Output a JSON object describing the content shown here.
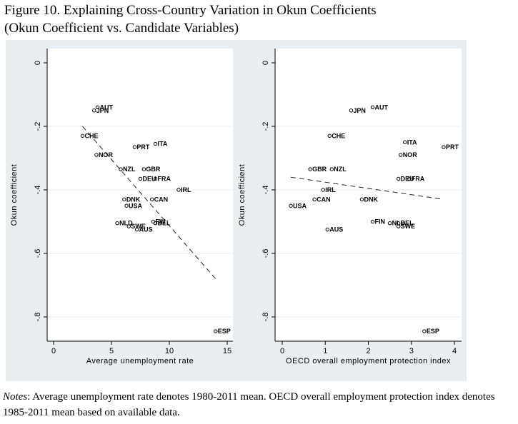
{
  "figure": {
    "title_line1": "Figure 10. Explaining Cross-Country Variation in Okun Coefficients",
    "title_line2": "(Okun Coefficient vs. Candidate Variables)"
  },
  "notes": {
    "label": "Notes",
    "text": ": Average unemployment rate denotes 1980-2011 mean. OECD overall employment protection index denotes 1985-2011 mean based on available data."
  },
  "chart_data": [
    {
      "type": "scatter",
      "xlabel": "Average unemployment rate",
      "ylabel": "Okun coefficient",
      "xlim": [
        0,
        15
      ],
      "ylim": [
        -0.85,
        0
      ],
      "xticks": [
        0,
        5,
        10,
        15
      ],
      "yticks": [
        0,
        -0.2,
        -0.4,
        -0.6,
        -0.8
      ],
      "xtick_labels": [
        "0",
        "5",
        "10",
        "15"
      ],
      "ytick_labels": [
        "0",
        "-.2",
        "-.4",
        "-.6",
        "-.8"
      ],
      "grid": true,
      "fit_line": {
        "x": [
          2.5,
          14.0
        ],
        "y": [
          -0.2,
          -0.68
        ]
      },
      "points": [
        {
          "label": "AUT",
          "x": 3.8,
          "y": -0.14
        },
        {
          "label": "JPN",
          "x": 3.5,
          "y": -0.15
        },
        {
          "label": "CHE",
          "x": 2.5,
          "y": -0.23
        },
        {
          "label": "NOR",
          "x": 3.7,
          "y": -0.29
        },
        {
          "label": "PRT",
          "x": 7.0,
          "y": -0.265
        },
        {
          "label": "ITA",
          "x": 8.8,
          "y": -0.255
        },
        {
          "label": "NZL",
          "x": 5.8,
          "y": -0.335
        },
        {
          "label": "GBR",
          "x": 7.8,
          "y": -0.335
        },
        {
          "label": "DEU",
          "x": 7.5,
          "y": -0.365
        },
        {
          "label": "FRA",
          "x": 8.8,
          "y": -0.365
        },
        {
          "label": "IRL",
          "x": 10.8,
          "y": -0.4
        },
        {
          "label": "DNK",
          "x": 6.1,
          "y": -0.43
        },
        {
          "label": "CAN",
          "x": 8.5,
          "y": -0.43
        },
        {
          "label": "USA",
          "x": 6.3,
          "y": -0.45
        },
        {
          "label": "NLD",
          "x": 5.5,
          "y": -0.505
        },
        {
          "label": "FIN",
          "x": 8.6,
          "y": -0.5
        },
        {
          "label": "BEL",
          "x": 8.8,
          "y": -0.505
        },
        {
          "label": "SWE",
          "x": 6.5,
          "y": -0.515
        },
        {
          "label": "AUS",
          "x": 7.2,
          "y": -0.525
        },
        {
          "label": "ESP",
          "x": 14.0,
          "y": -0.845
        }
      ]
    },
    {
      "type": "scatter",
      "xlabel": "OECD overall employment protection index",
      "ylabel": "Okun coefficient",
      "xlim": [
        0,
        4
      ],
      "ylim": [
        -0.85,
        0
      ],
      "xticks": [
        0,
        1,
        2,
        3,
        4
      ],
      "yticks": [
        0,
        -0.2,
        -0.4,
        -0.6,
        -0.8
      ],
      "xtick_labels": [
        "0",
        "1",
        "2",
        "3",
        "4"
      ],
      "ytick_labels": [
        "0",
        "-.2",
        "-.4",
        "-.6",
        "-.8"
      ],
      "grid": true,
      "fit_line": {
        "x": [
          0.2,
          3.75
        ],
        "y": [
          -0.36,
          -0.43
        ]
      },
      "points": [
        {
          "label": "AUT",
          "x": 2.1,
          "y": -0.14
        },
        {
          "label": "JPN",
          "x": 1.6,
          "y": -0.15
        },
        {
          "label": "CHE",
          "x": 1.1,
          "y": -0.23
        },
        {
          "label": "ITA",
          "x": 2.85,
          "y": -0.25
        },
        {
          "label": "PRT",
          "x": 3.75,
          "y": -0.265
        },
        {
          "label": "NOR",
          "x": 2.75,
          "y": -0.29
        },
        {
          "label": "GBR",
          "x": 0.65,
          "y": -0.335
        },
        {
          "label": "NZL",
          "x": 1.15,
          "y": -0.335
        },
        {
          "label": "DEU",
          "x": 2.7,
          "y": -0.365
        },
        {
          "label": "FRA",
          "x": 2.95,
          "y": -0.365
        },
        {
          "label": "IRL",
          "x": 0.95,
          "y": -0.4
        },
        {
          "label": "CAN",
          "x": 0.75,
          "y": -0.43
        },
        {
          "label": "DNK",
          "x": 1.85,
          "y": -0.43
        },
        {
          "label": "USA",
          "x": 0.2,
          "y": -0.45
        },
        {
          "label": "FIN",
          "x": 2.1,
          "y": -0.5
        },
        {
          "label": "NLD",
          "x": 2.5,
          "y": -0.505
        },
        {
          "label": "BEL",
          "x": 2.7,
          "y": -0.505
        },
        {
          "label": "SWE",
          "x": 2.7,
          "y": -0.515
        },
        {
          "label": "AUS",
          "x": 1.05,
          "y": -0.525
        },
        {
          "label": "ESP",
          "x": 3.3,
          "y": -0.845
        }
      ]
    }
  ]
}
